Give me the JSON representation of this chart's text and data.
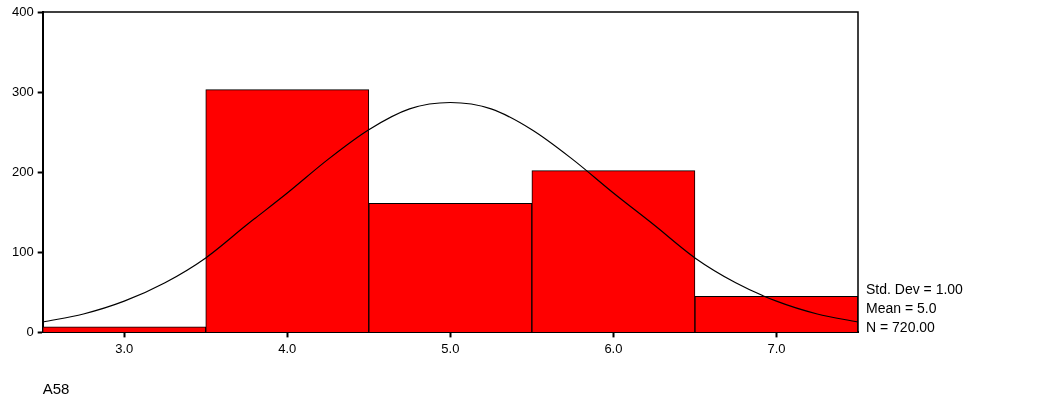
{
  "chart_data": {
    "type": "histogram",
    "xlabel": "A58",
    "bins": [
      2.5,
      3.5,
      4.5,
      5.5,
      6.5,
      7.5
    ],
    "series": [
      {
        "color": "#ff0000",
        "values": [
          7,
          303,
          161,
          202,
          45
        ]
      },
      {
        "type": "line",
        "color": "#000000",
        "x": [
          2.5,
          2.75,
          3,
          3.25,
          3.5,
          3.75,
          4,
          4.25,
          4.5,
          4.75,
          5,
          5.25,
          5.5,
          5.75,
          6,
          6.25,
          6.5,
          6.75,
          7,
          7.25,
          7.5
        ],
        "values": [
          13,
          23,
          39,
          62,
          93,
          134,
          174,
          216,
          253,
          279,
          287,
          279,
          253,
          216,
          174,
          134,
          93,
          62,
          39,
          23,
          13
        ]
      }
    ],
    "xlim": [
      2.5,
      7.5
    ],
    "xticks": [
      {
        "value": 3,
        "label": "3.0"
      },
      {
        "value": 4,
        "label": "4.0"
      },
      {
        "value": 5,
        "label": "5.0"
      },
      {
        "value": 6,
        "label": "6.0"
      },
      {
        "value": 7,
        "label": "7.0"
      }
    ],
    "ylim": [
      0,
      400
    ],
    "yticks": [
      0,
      100,
      200,
      300,
      400
    ],
    "grid": false,
    "legend": false,
    "marker": "none",
    "line_style": "solid",
    "annotations": [
      "Std. Dev = 1.00",
      "Mean = 5.0",
      "N = 720.00"
    ]
  }
}
